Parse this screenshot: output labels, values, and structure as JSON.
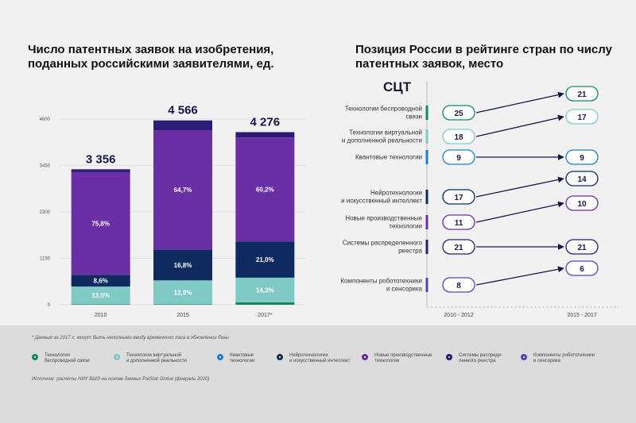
{
  "left_title": "Число патентных заявок на изобретения, поданных российскими заявителями, ед.",
  "right_title": "Позиция России в рейтинге стран по числу патентных заявок, место",
  "sct_label": "СЦТ",
  "colors": {
    "wireless": "#0f8a5f",
    "vr": "#7fcac4",
    "quantum": "#1e7fcb",
    "neuro": "#0e2a5e",
    "manufacturing": "#6a2fa5",
    "ledger": "#2d1b78",
    "robotics": "#5046b8"
  },
  "chart_data": [
    {
      "type": "bar",
      "stacked": true,
      "title": "Число патентных заявок на изобретения, поданных российскими заявителями, ед.",
      "categories": [
        "2010",
        "2015",
        "2017*"
      ],
      "totals": [
        "3 356",
        "4 566",
        "4 276"
      ],
      "total_values": [
        3356,
        4566,
        4276
      ],
      "yticks": [
        "0",
        "1150",
        "2300",
        "3450",
        "4600"
      ],
      "ylim": [
        0,
        4600
      ],
      "series": [
        {
          "key": "wireless",
          "values": [
            15,
            15,
            60
          ],
          "labels": [
            "",
            "",
            ""
          ]
        },
        {
          "key": "vr",
          "values": [
            436,
            589,
            611
          ],
          "labels": [
            "13,0%",
            "12,9%",
            "14,3%"
          ]
        },
        {
          "key": "neuro",
          "values": [
            289,
            767,
            898
          ],
          "labels": [
            "8,6%",
            "16,8%",
            "21,0%"
          ]
        },
        {
          "key": "manufacturing",
          "values": [
            2544,
            2954,
            2574
          ],
          "labels": [
            "75,8%",
            "64,7%",
            "60,2%"
          ]
        },
        {
          "key": "ledger",
          "values": [
            72,
            241,
            133
          ],
          "labels": [
            "",
            "",
            ""
          ]
        }
      ]
    },
    {
      "type": "table",
      "title": "Позиция России в рейтинге стран по числу патентных заявок, место",
      "periods": [
        "2010 - 2012",
        "2015 - 2017"
      ],
      "rows": [
        {
          "label": "Технологии беспроводной\nсвязи",
          "key": "wireless",
          "from": "25",
          "to": "21"
        },
        {
          "label": "Технологии виртуальной\nи дополненной реальности",
          "key": "vr",
          "from": "18",
          "to": "17"
        },
        {
          "label": "Квантовые технологии",
          "key": "quantum",
          "from": "9",
          "to": "9"
        },
        {
          "label": "Нейротехнологии\nи искусственный интеллект",
          "key": "neuro",
          "from": "17",
          "to": "14"
        },
        {
          "label": "Новые производственные\nтехнологии",
          "key": "manufacturing",
          "from": "11",
          "to": "10"
        },
        {
          "label": "Системы распределенного\nреестра",
          "key": "ledger",
          "from": "21",
          "to": "21"
        },
        {
          "label": "Компоненты робототехники\nи сенсорика",
          "key": "robotics",
          "from": "8",
          "to": "6"
        }
      ]
    }
  ],
  "footnote": "* Данные за 2017 г. могут быть неполными ввиду временного лага в обновлении базы",
  "legend": [
    {
      "key": "wireless",
      "label": "Технологии\nбеспроводной связи"
    },
    {
      "key": "vr",
      "label": "Технологии виртуальной\nи дополненной реальности"
    },
    {
      "key": "quantum",
      "label": "Квантовые\nтехнологии"
    },
    {
      "key": "neuro",
      "label": "Нейротехнологии\nи искусственный интеллект"
    },
    {
      "key": "manufacturing",
      "label": "Новые производственные\nтехнологии"
    },
    {
      "key": "ledger",
      "label": "Системы распреде-\nленного реестра"
    },
    {
      "key": "robotics",
      "label": "Компоненты робототехники\nи сенсорика"
    }
  ],
  "source": "Источник: расчеты НИУ ВШЭ на основе данных PatStat Global (февраль 2020)"
}
